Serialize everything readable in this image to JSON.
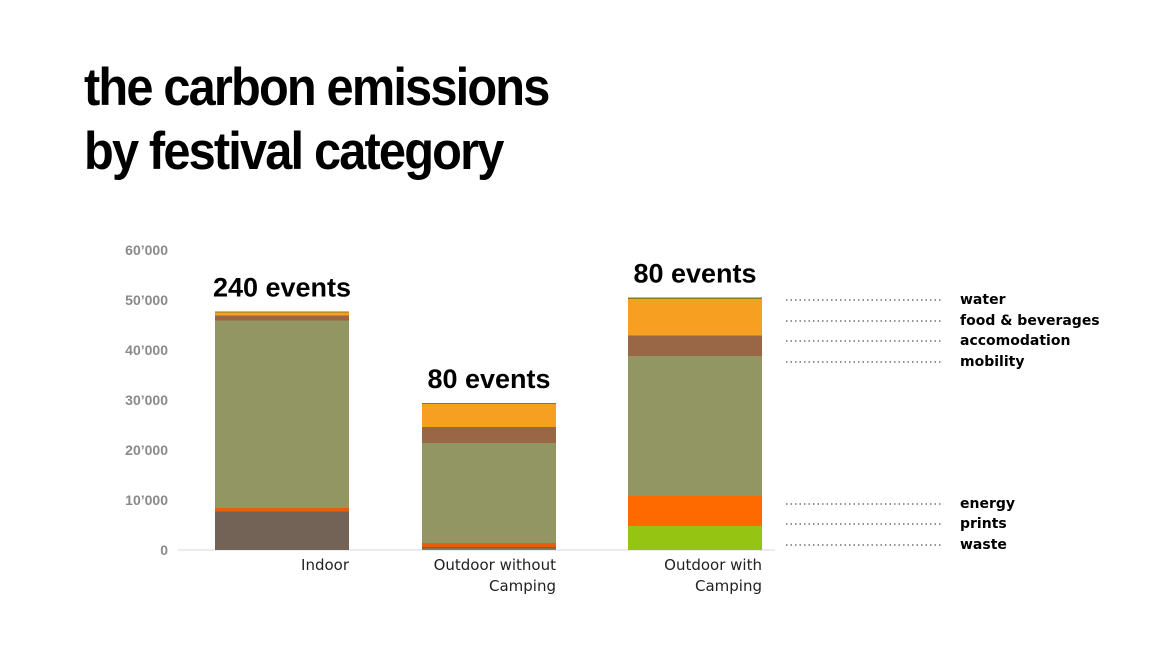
{
  "title": {
    "line1": "the carbon emissions",
    "line2": "by festival category"
  },
  "chart_data": {
    "type": "bar",
    "stacked": true,
    "categories": [
      "Indoor",
      "Outdoor without Camping",
      "Outdoor with Camping"
    ],
    "category_lines": [
      [
        "Indoor"
      ],
      [
        "Outdoor without",
        "Camping"
      ],
      [
        "Outdoor with",
        "Camping"
      ]
    ],
    "annotations": [
      "240 events",
      "80 events",
      "80 events"
    ],
    "ylim": [
      0,
      60000
    ],
    "yticks": [
      0,
      10000,
      20000,
      30000,
      40000,
      50000,
      60000
    ],
    "ytick_labels": [
      "0",
      "10’000",
      "20’000",
      "30’000",
      "40’000",
      "50’000",
      "60’000"
    ],
    "series": [
      {
        "name": "waste",
        "color": "#8a8b2f",
        "values": [
          0,
          300,
          0
        ]
      },
      {
        "name": "prints",
        "color": "#736357",
        "values": [
          7700,
          300,
          0
        ]
      },
      {
        "name": "energy",
        "color": "#e85c0d",
        "values": [
          700,
          800,
          0
        ]
      },
      {
        "name": "mobility",
        "color": "#919663",
        "values": [
          37500,
          20000,
          28000
        ]
      },
      {
        "name": "accomodation",
        "color": "#996745",
        "values": [
          1000,
          3200,
          4100
        ]
      },
      {
        "name": "food & beverages",
        "color": "#f79f21",
        "values": [
          600,
          4600,
          7300
        ]
      },
      {
        "name": "water",
        "color": "#8a7a20",
        "values": [
          200,
          200,
          300
        ]
      }
    ],
    "legend": [
      "water",
      "food & beverages",
      "accomodation",
      "mobility",
      "energy",
      "prints",
      "waste"
    ],
    "bar3_bottom_segments": [
      {
        "name": "waste",
        "color": "#96c413",
        "value": 4800
      },
      {
        "name": "energy",
        "color": "#ff6a00",
        "value": 6000
      }
    ]
  }
}
